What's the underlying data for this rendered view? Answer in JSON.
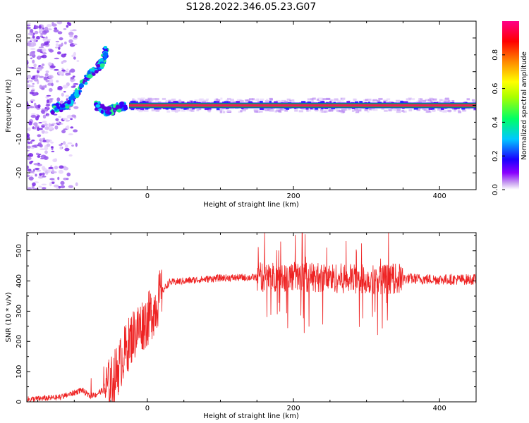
{
  "title": "S128.2022.346.05.23.G07",
  "colors": {
    "snr_line": "#ee2222",
    "carrier_band": "#ee1a5a",
    "carrier_edge": "#00cc33"
  },
  "chart_data": [
    {
      "type": "heatmap",
      "xlabel": "Height of straight line (km)",
      "ylabel": "Frequency (Hz)",
      "xlim": [
        -165,
        450
      ],
      "ylim": [
        -25,
        25
      ],
      "xticks": [
        0,
        200,
        400
      ],
      "yticks": [
        -20,
        -10,
        0,
        10,
        20
      ],
      "colorbar": {
        "label": "Normalized spectral amplitude",
        "range": [
          0.0,
          1.0
        ],
        "ticks": [
          "0.0",
          "0.2",
          "0.4",
          "0.6",
          "0.8"
        ],
        "colormap": "rainbow (purple to red)"
      },
      "features": {
        "carrier_line": {
          "x_range": [
            -25,
            450
          ],
          "frequency_hz": 0,
          "amplitude": 0.95
        },
        "signal_branch_1": {
          "points": [
            [
              -130,
              -1
            ],
            [
              -110,
              0
            ],
            [
              -95,
              4
            ],
            [
              -80,
              9
            ],
            [
              -70,
              11
            ],
            [
              -60,
              13
            ],
            [
              -55,
              17
            ]
          ]
        },
        "signal_branch_2": {
          "points": [
            [
              -70,
              0
            ],
            [
              -55,
              -2
            ],
            [
              -45,
              -1
            ],
            [
              -30,
              0
            ]
          ]
        },
        "low_altitude_noise": {
          "x_range": [
            -165,
            -95
          ],
          "frequency_range_hz": [
            -25,
            25
          ]
        }
      }
    },
    {
      "type": "line",
      "xlabel": "Height of straight line (km)",
      "ylabel": "SNR (10 * v/v)",
      "xlim": [
        -165,
        450
      ],
      "ylim": [
        0,
        560
      ],
      "xticks": [
        0,
        200,
        400
      ],
      "yticks": [
        0,
        100,
        200,
        300,
        400,
        500
      ],
      "series": [
        {
          "x": [
            -165,
            -150,
            -120,
            -100,
            -90,
            -80,
            -70,
            -60,
            -50,
            -40,
            -30,
            -20,
            -10,
            0,
            10,
            20,
            30,
            50,
            100,
            150,
            200,
            250,
            300,
            350,
            400,
            450
          ],
          "y": [
            8,
            10,
            15,
            30,
            40,
            20,
            25,
            40,
            60,
            110,
            170,
            220,
            250,
            270,
            310,
            365,
            395,
            400,
            410,
            412,
            415,
            410,
            405,
            408,
            405,
            405
          ]
        }
      ]
    }
  ]
}
